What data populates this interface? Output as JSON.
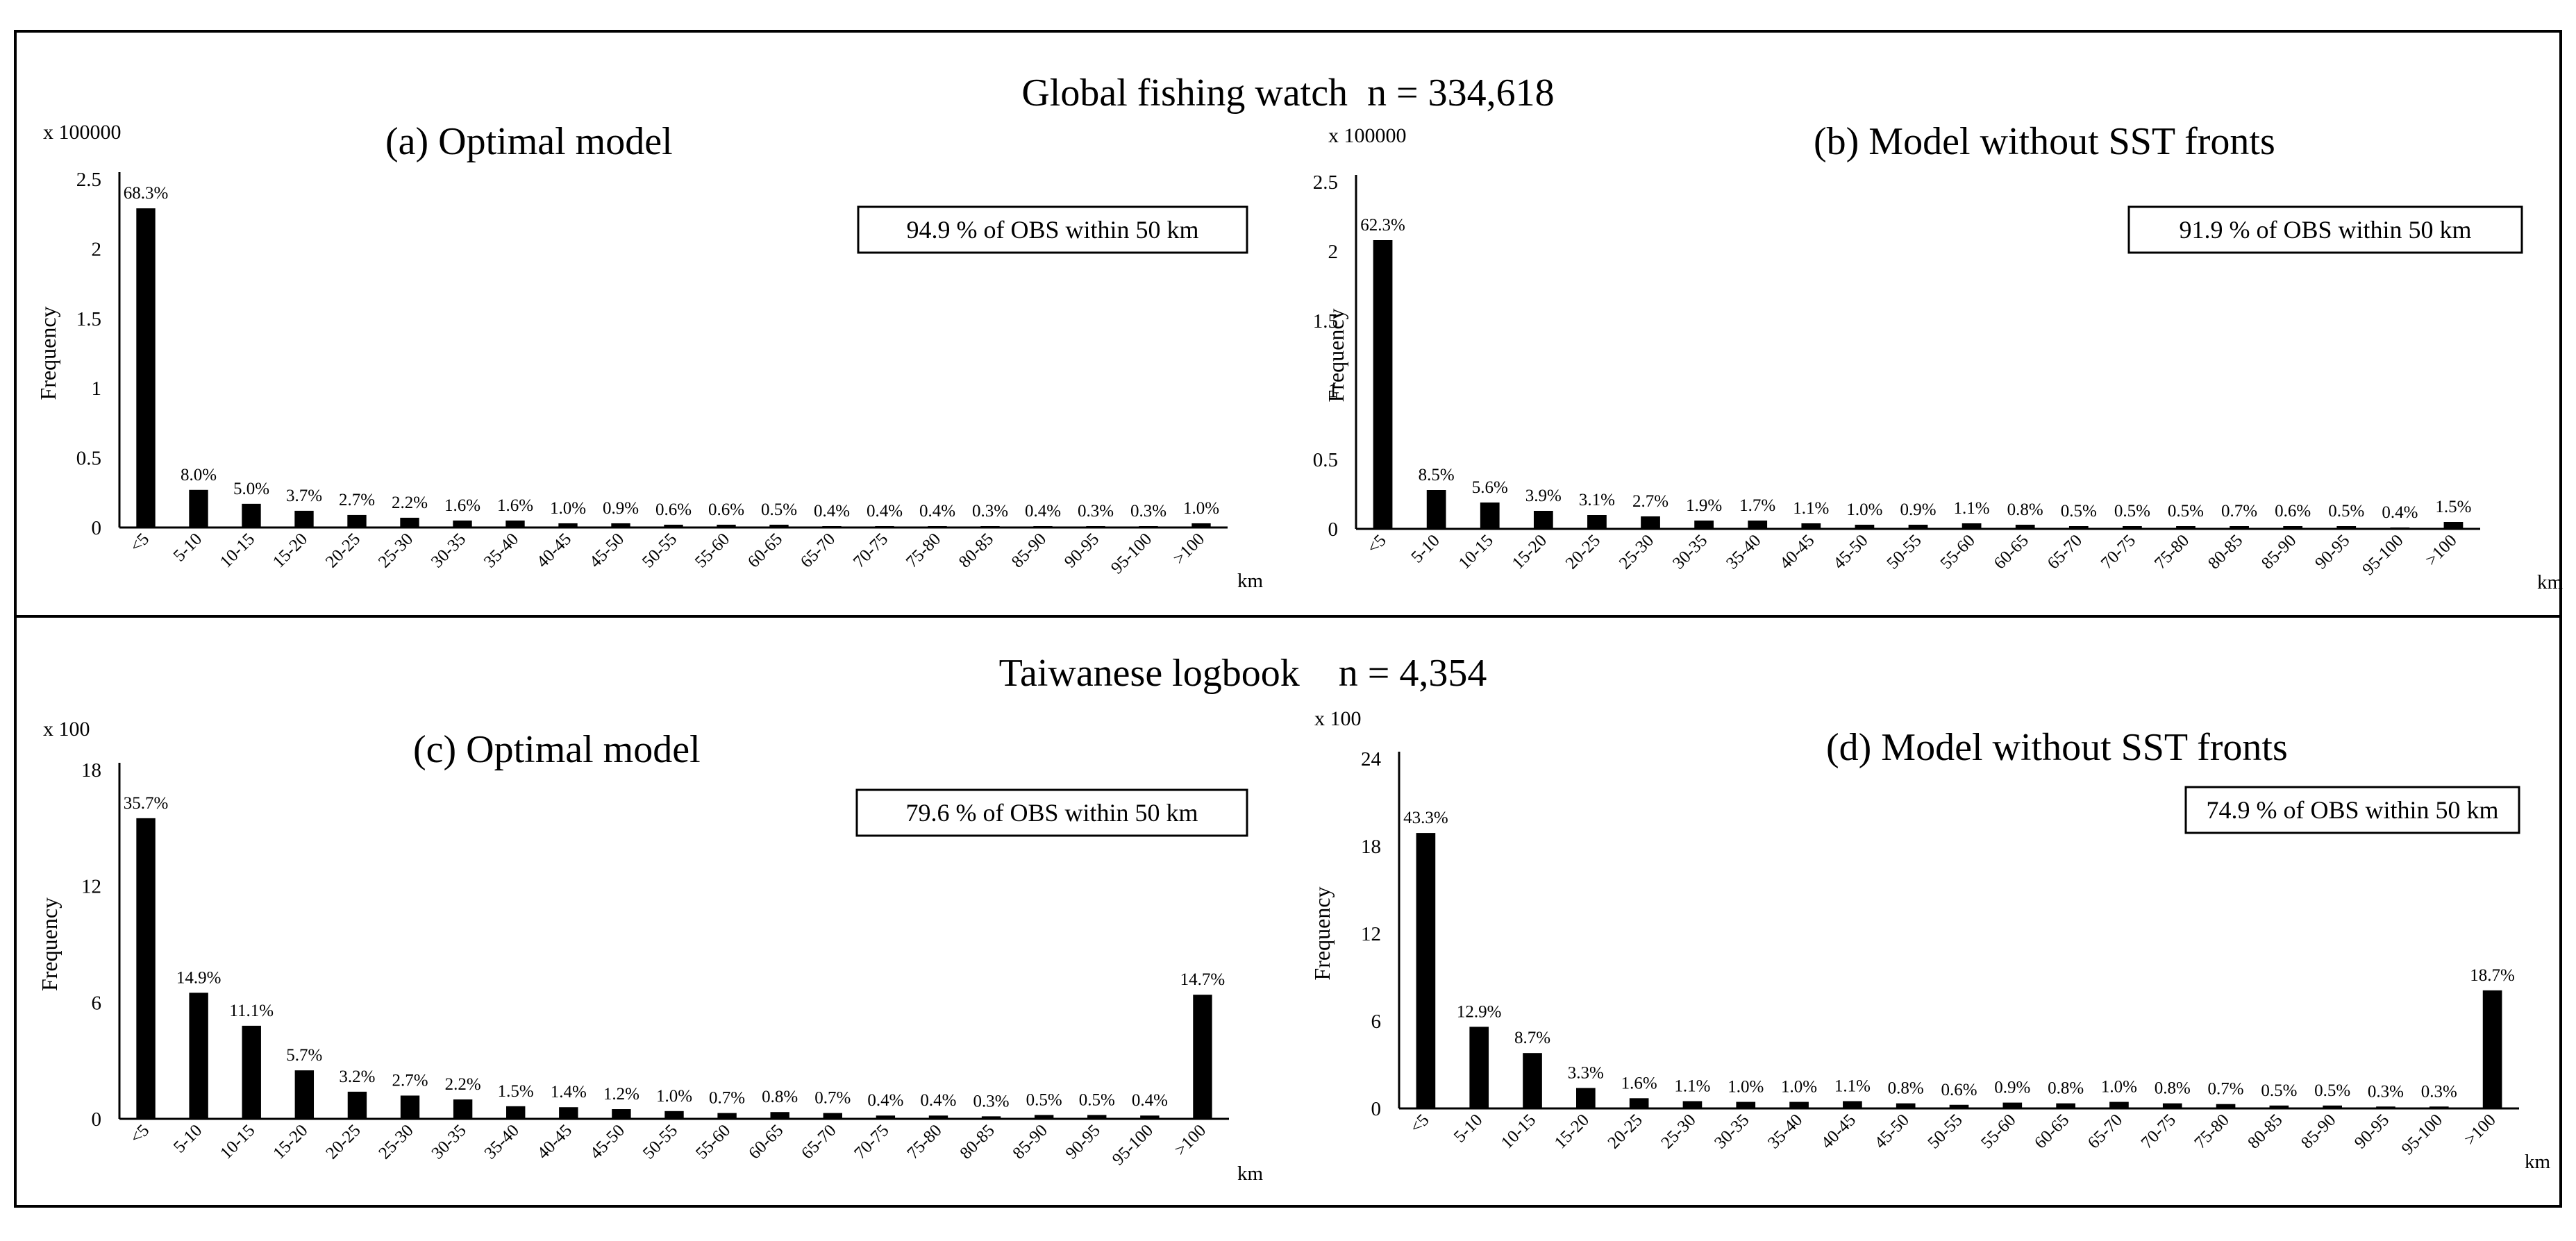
{
  "sections": [
    {
      "title": "Global fishing watch  n = 334,618"
    },
    {
      "title": "Taiwanese logbook    n = 4,354"
    }
  ],
  "chart_data": [
    {
      "type": "bar",
      "title": "(a) Optimal model",
      "multiplier_label": "x 100000",
      "ylabel": "Frequency",
      "xunit": "km",
      "annotation": "94.9 % of OBS within 50 km",
      "yticks": [
        "0",
        "0.5",
        "1",
        "1.5",
        "2",
        "2.5"
      ],
      "ylim": [
        0,
        2.5
      ],
      "categories": [
        "<5",
        "5-10",
        "10-15",
        "15-20",
        "20-25",
        "25-30",
        "30-35",
        "35-40",
        "40-45",
        "45-50",
        "50-55",
        "55-60",
        "60-65",
        "65-70",
        "70-75",
        "75-80",
        "80-85",
        "85-90",
        "90-95",
        "95-100",
        ">100"
      ],
      "values": [
        2.29,
        0.27,
        0.17,
        0.12,
        0.09,
        0.07,
        0.05,
        0.05,
        0.03,
        0.03,
        0.02,
        0.02,
        0.02,
        0.01,
        0.01,
        0.01,
        0.01,
        0.01,
        0.01,
        0.01,
        0.03
      ],
      "labels": [
        "68.3%",
        "8.0%",
        "5.0%",
        "3.7%",
        "2.7%",
        "2.2%",
        "1.6%",
        "1.6%",
        "1.0%",
        "0.9%",
        "0.6%",
        "0.6%",
        "0.5%",
        "0.4%",
        "0.4%",
        "0.4%",
        "0.3%",
        "0.4%",
        "0.3%",
        "0.3%",
        "1.0%"
      ]
    },
    {
      "type": "bar",
      "title": "(b) Model without SST fronts",
      "multiplier_label": "x 100000",
      "ylabel": "Frequency",
      "xunit": "km",
      "annotation": "91.9 % of OBS within 50 km",
      "yticks": [
        "0",
        "0.5",
        "1",
        "1.5",
        "2",
        "2.5"
      ],
      "ylim": [
        0,
        2.5
      ],
      "categories": [
        "<5",
        "5-10",
        "10-15",
        "15-20",
        "20-25",
        "25-30",
        "30-35",
        "35-40",
        "40-45",
        "45-50",
        "50-55",
        "55-60",
        "60-65",
        "65-70",
        "70-75",
        "75-80",
        "80-85",
        "85-90",
        "90-95",
        "95-100",
        ">100"
      ],
      "values": [
        2.08,
        0.28,
        0.19,
        0.13,
        0.1,
        0.09,
        0.06,
        0.06,
        0.04,
        0.03,
        0.03,
        0.04,
        0.03,
        0.02,
        0.02,
        0.02,
        0.02,
        0.02,
        0.02,
        0.01,
        0.05
      ],
      "labels": [
        "62.3%",
        "8.5%",
        "5.6%",
        "3.9%",
        "3.1%",
        "2.7%",
        "1.9%",
        "1.7%",
        "1.1%",
        "1.0%",
        "0.9%",
        "1.1%",
        "0.8%",
        "0.5%",
        "0.5%",
        "0.5%",
        "0.7%",
        "0.6%",
        "0.5%",
        "0.4%",
        "1.5%"
      ]
    },
    {
      "type": "bar",
      "title": "(c) Optimal model",
      "multiplier_label": "x 100",
      "ylabel": "Frequency",
      "xunit": "km",
      "annotation": "79.6 % of OBS within 50 km",
      "yticks": [
        "0",
        "6",
        "12",
        "18"
      ],
      "ylim": [
        0,
        18
      ],
      "categories": [
        "<5",
        "5-10",
        "10-15",
        "15-20",
        "20-25",
        "25-30",
        "30-35",
        "35-40",
        "40-45",
        "45-50",
        "50-55",
        "55-60",
        "60-65",
        "65-70",
        "70-75",
        "75-80",
        "80-85",
        "85-90",
        "90-95",
        "95-100",
        ">100"
      ],
      "values": [
        15.5,
        6.5,
        4.8,
        2.5,
        1.4,
        1.2,
        1.0,
        0.65,
        0.6,
        0.5,
        0.4,
        0.3,
        0.35,
        0.3,
        0.17,
        0.17,
        0.13,
        0.2,
        0.2,
        0.17,
        6.4
      ],
      "labels": [
        "35.7%",
        "14.9%",
        "11.1%",
        "5.7%",
        "3.2%",
        "2.7%",
        "2.2%",
        "1.5%",
        "1.4%",
        "1.2%",
        "1.0%",
        "0.7%",
        "0.8%",
        "0.7%",
        "0.4%",
        "0.4%",
        "0.3%",
        "0.5%",
        "0.5%",
        "0.4%",
        "14.7%"
      ]
    },
    {
      "type": "bar",
      "title": "(d) Model without SST fronts",
      "multiplier_label": "x 100",
      "ylabel": "Frequency",
      "xunit": "km",
      "annotation": "74.9 % of OBS within 50 km",
      "yticks": [
        "0",
        "6",
        "12",
        "18",
        "24"
      ],
      "ylim": [
        0,
        24
      ],
      "categories": [
        "<5",
        "5-10",
        "10-15",
        "15-20",
        "20-25",
        "25-30",
        "30-35",
        "35-40",
        "40-45",
        "45-50",
        "50-55",
        "55-60",
        "60-65",
        "65-70",
        "70-75",
        "75-80",
        "80-85",
        "85-90",
        "90-95",
        "95-100",
        ">100"
      ],
      "values": [
        18.9,
        5.6,
        3.8,
        1.4,
        0.7,
        0.5,
        0.45,
        0.45,
        0.5,
        0.35,
        0.25,
        0.4,
        0.35,
        0.45,
        0.35,
        0.3,
        0.2,
        0.2,
        0.13,
        0.13,
        8.1
      ],
      "labels": [
        "43.3%",
        "12.9%",
        "8.7%",
        "3.3%",
        "1.6%",
        "1.1%",
        "1.0%",
        "1.0%",
        "1.1%",
        "0.8%",
        "0.6%",
        "0.9%",
        "0.8%",
        "1.0%",
        "0.8%",
        "0.7%",
        "0.5%",
        "0.5%",
        "0.3%",
        "0.3%",
        "18.7%"
      ]
    }
  ]
}
